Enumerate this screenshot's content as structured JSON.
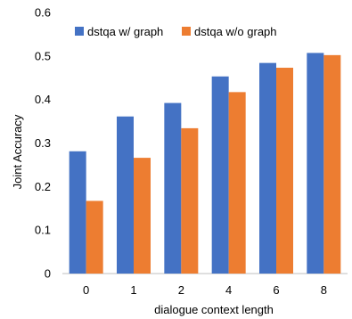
{
  "chart_data": {
    "type": "bar",
    "title": "",
    "xlabel": "dialogue context length",
    "ylabel": "Joint Accuracy",
    "categories": [
      "0",
      "1",
      "2",
      "4",
      "6",
      "8"
    ],
    "series": [
      {
        "name": "dstqa w/ graph",
        "color": "#4472C4",
        "values": [
          0.281,
          0.361,
          0.392,
          0.453,
          0.484,
          0.507
        ]
      },
      {
        "name": "dstqa w/o graph",
        "color": "#ED7D31",
        "values": [
          0.167,
          0.266,
          0.334,
          0.417,
          0.473,
          0.502
        ]
      }
    ],
    "ylim": [
      0,
      0.6
    ],
    "yticks": [
      "0",
      "0.1",
      "0.2",
      "0.3",
      "0.4",
      "0.5",
      "0.6"
    ],
    "grid": false,
    "legend": "top-left"
  }
}
